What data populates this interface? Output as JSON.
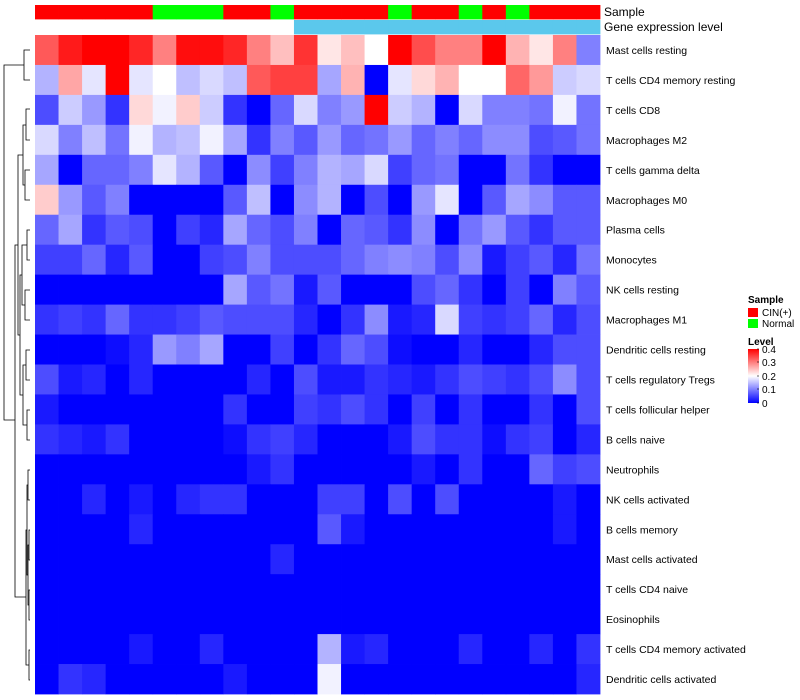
{
  "chart_data": {
    "type": "heatmap",
    "annotation_labels": [
      "Sample",
      "Gene expression level"
    ],
    "sample_groups": [
      "C",
      "C",
      "C",
      "C",
      "C",
      "N",
      "N",
      "N",
      "C",
      "C",
      "N",
      "C",
      "C",
      "C",
      "C",
      "N",
      "C",
      "C",
      "N",
      "C",
      "N",
      "C",
      "C",
      "C"
    ],
    "expression_bands": [
      "low",
      "low",
      "low",
      "low",
      "low",
      "low",
      "low",
      "low",
      "low",
      "low",
      "low",
      "high",
      "high",
      "high",
      "high",
      "high",
      "high",
      "high",
      "high",
      "high",
      "high",
      "high",
      "high",
      "high"
    ],
    "rows": [
      "Mast cells resting",
      "T cells CD4 memory resting",
      "T cells CD8",
      "Macrophages M2",
      "T cells gamma delta",
      "Macrophages M0",
      "Plasma cells",
      "Monocytes",
      "NK cells resting",
      "Macrophages M1",
      "Dendritic cells resting",
      "T cells regulatory  Tregs",
      "T cells follicular helper",
      "B cells naive",
      "Neutrophils",
      "NK cells activated",
      "B cells memory",
      "Mast cells activated",
      "T cells CD4 naive",
      "Eosinophils",
      "T cells CD4 memory activated",
      "Dendritic cells activated"
    ],
    "values": [
      [
        0.33,
        0.38,
        0.4,
        0.4,
        0.37,
        0.3,
        0.39,
        0.39,
        0.37,
        0.3,
        0.25,
        0.36,
        0.22,
        0.25,
        0.2,
        0.4,
        0.34,
        0.3,
        0.3,
        0.4,
        0.26,
        0.22,
        0.3,
        0.1
      ],
      [
        0.14,
        0.27,
        0.18,
        0.4,
        0.18,
        0.2,
        0.15,
        0.17,
        0.15,
        0.33,
        0.35,
        0.35,
        0.13,
        0.26,
        0.0,
        0.18,
        0.23,
        0.26,
        0.2,
        0.2,
        0.32,
        0.28,
        0.16,
        0.17
      ],
      [
        0.06,
        0.16,
        0.12,
        0.04,
        0.23,
        0.19,
        0.24,
        0.16,
        0.04,
        0.0,
        0.08,
        0.17,
        0.1,
        0.12,
        0.4,
        0.16,
        0.14,
        0.0,
        0.17,
        0.1,
        0.1,
        0.09,
        0.19,
        0.09
      ],
      [
        0.17,
        0.1,
        0.15,
        0.09,
        0.19,
        0.14,
        0.15,
        0.19,
        0.13,
        0.04,
        0.1,
        0.07,
        0.12,
        0.08,
        0.09,
        0.12,
        0.08,
        0.1,
        0.08,
        0.11,
        0.11,
        0.06,
        0.07,
        0.09
      ],
      [
        0.13,
        0.0,
        0.08,
        0.08,
        0.1,
        0.18,
        0.14,
        0.07,
        0.0,
        0.11,
        0.05,
        0.1,
        0.14,
        0.13,
        0.17,
        0.05,
        0.08,
        0.09,
        0.0,
        0.0,
        0.09,
        0.04,
        0.0,
        0.0
      ],
      [
        0.24,
        0.12,
        0.07,
        0.1,
        0.0,
        0.0,
        0.0,
        0.0,
        0.07,
        0.15,
        0.0,
        0.11,
        0.14,
        0.0,
        0.06,
        0.0,
        0.12,
        0.18,
        0.0,
        0.07,
        0.13,
        0.11,
        0.07,
        0.07
      ],
      [
        0.08,
        0.13,
        0.04,
        0.07,
        0.06,
        0.0,
        0.05,
        0.03,
        0.13,
        0.08,
        0.06,
        0.1,
        0.0,
        0.08,
        0.07,
        0.04,
        0.11,
        0.0,
        0.09,
        0.12,
        0.07,
        0.04,
        0.07,
        0.07
      ],
      [
        0.05,
        0.05,
        0.08,
        0.03,
        0.07,
        0.0,
        0.0,
        0.05,
        0.06,
        0.1,
        0.06,
        0.06,
        0.06,
        0.08,
        0.1,
        0.11,
        0.1,
        0.06,
        0.11,
        0.02,
        0.05,
        0.07,
        0.03,
        0.09
      ],
      [
        0.0,
        0.0,
        0.0,
        0.0,
        0.0,
        0.0,
        0.0,
        0.0,
        0.13,
        0.07,
        0.09,
        0.02,
        0.07,
        0.0,
        0.0,
        0.0,
        0.06,
        0.08,
        0.04,
        0.0,
        0.05,
        0.0,
        0.1,
        0.07
      ],
      [
        0.04,
        0.05,
        0.04,
        0.08,
        0.04,
        0.04,
        0.05,
        0.07,
        0.06,
        0.06,
        0.06,
        0.03,
        0.0,
        0.04,
        0.11,
        0.02,
        0.03,
        0.17,
        0.05,
        0.04,
        0.05,
        0.08,
        0.03,
        0.06
      ],
      [
        0.0,
        0.0,
        0.0,
        0.01,
        0.03,
        0.12,
        0.1,
        0.13,
        0.0,
        0.0,
        0.05,
        0.0,
        0.04,
        0.08,
        0.06,
        0.01,
        0.0,
        0.0,
        0.03,
        0.0,
        0.0,
        0.03,
        0.06,
        0.06
      ],
      [
        0.06,
        0.02,
        0.03,
        0.0,
        0.03,
        0.0,
        0.0,
        0.0,
        0.0,
        0.03,
        0.0,
        0.06,
        0.02,
        0.02,
        0.04,
        0.03,
        0.02,
        0.04,
        0.06,
        0.05,
        0.04,
        0.06,
        0.11,
        0.06
      ],
      [
        0.02,
        0.0,
        0.0,
        0.0,
        0.0,
        0.0,
        0.0,
        0.0,
        0.04,
        0.0,
        0.0,
        0.05,
        0.04,
        0.06,
        0.04,
        0.0,
        0.05,
        0.0,
        0.04,
        0.0,
        0.0,
        0.04,
        0.0,
        0.06
      ],
      [
        0.04,
        0.03,
        0.02,
        0.04,
        0.0,
        0.0,
        0.0,
        0.0,
        0.01,
        0.04,
        0.05,
        0.03,
        0.0,
        0.0,
        0.0,
        0.02,
        0.06,
        0.04,
        0.04,
        0.01,
        0.04,
        0.05,
        0.0,
        0.03
      ],
      [
        0.0,
        0.0,
        0.0,
        0.0,
        0.0,
        0.0,
        0.0,
        0.0,
        0.0,
        0.02,
        0.04,
        0.0,
        0.0,
        0.0,
        0.0,
        0.0,
        0.02,
        0.0,
        0.04,
        0.0,
        0.0,
        0.08,
        0.05,
        0.06
      ],
      [
        0.0,
        0.0,
        0.03,
        0.0,
        0.02,
        0.0,
        0.03,
        0.04,
        0.04,
        0.0,
        0.0,
        0.0,
        0.05,
        0.05,
        0.0,
        0.06,
        0.0,
        0.06,
        0.0,
        0.0,
        0.0,
        0.0,
        0.02,
        0.0
      ],
      [
        0.0,
        0.0,
        0.0,
        0.0,
        0.03,
        0.0,
        0.0,
        0.0,
        0.0,
        0.0,
        0.0,
        0.0,
        0.07,
        0.02,
        0.0,
        0.0,
        0.0,
        0.0,
        0.0,
        0.0,
        0.0,
        0.0,
        0.02,
        0.0
      ],
      [
        0.0,
        0.0,
        0.0,
        0.0,
        0.0,
        0.0,
        0.0,
        0.0,
        0.0,
        0.0,
        0.03,
        0.0,
        0.0,
        0.0,
        0.0,
        0.0,
        0.0,
        0.0,
        0.0,
        0.0,
        0.0,
        0.0,
        0.0,
        0.0
      ],
      [
        0.0,
        0.0,
        0.0,
        0.0,
        0.0,
        0.0,
        0.0,
        0.0,
        0.0,
        0.0,
        0.0,
        0.0,
        0.0,
        0.0,
        0.0,
        0.0,
        0.0,
        0.0,
        0.0,
        0.0,
        0.0,
        0.0,
        0.0,
        0.0
      ],
      [
        0.0,
        0.0,
        0.0,
        0.0,
        0.0,
        0.0,
        0.0,
        0.0,
        0.0,
        0.0,
        0.0,
        0.0,
        0.0,
        0.0,
        0.0,
        0.0,
        0.0,
        0.0,
        0.0,
        0.0,
        0.0,
        0.0,
        0.0,
        0.0
      ],
      [
        0.0,
        0.0,
        0.0,
        0.0,
        0.02,
        0.0,
        0.0,
        0.03,
        0.0,
        0.0,
        0.0,
        0.0,
        0.14,
        0.02,
        0.03,
        0.0,
        0.0,
        0.0,
        0.03,
        0.0,
        0.0,
        0.03,
        0.0,
        0.04
      ],
      [
        0.0,
        0.04,
        0.03,
        0.0,
        0.0,
        0.0,
        0.0,
        0.0,
        0.02,
        0.0,
        0.0,
        0.0,
        0.19,
        0.0,
        0.0,
        0.0,
        0.0,
        0.0,
        0.0,
        0.0,
        0.0,
        0.0,
        0.0,
        0.03
      ]
    ],
    "color_scale": {
      "min": 0,
      "max": 0.4,
      "low": "#0000ff",
      "mid": "#ffffff",
      "high": "#ff0000"
    },
    "legend": {
      "sample_title": "Sample",
      "sample_items": [
        {
          "key": "C",
          "label": "CIN(+)",
          "color": "#ff0000"
        },
        {
          "key": "N",
          "label": "Normal",
          "color": "#00ff00"
        }
      ],
      "level_title": "Level",
      "level_ticks": [
        "0.4",
        "0.3",
        "0.2",
        "0.1",
        "0"
      ],
      "placement": "right-middle"
    },
    "expression_colors": {
      "low": "#ffffff",
      "high": "#5bc8ec"
    },
    "dendrogram": "left-side row clustering"
  }
}
